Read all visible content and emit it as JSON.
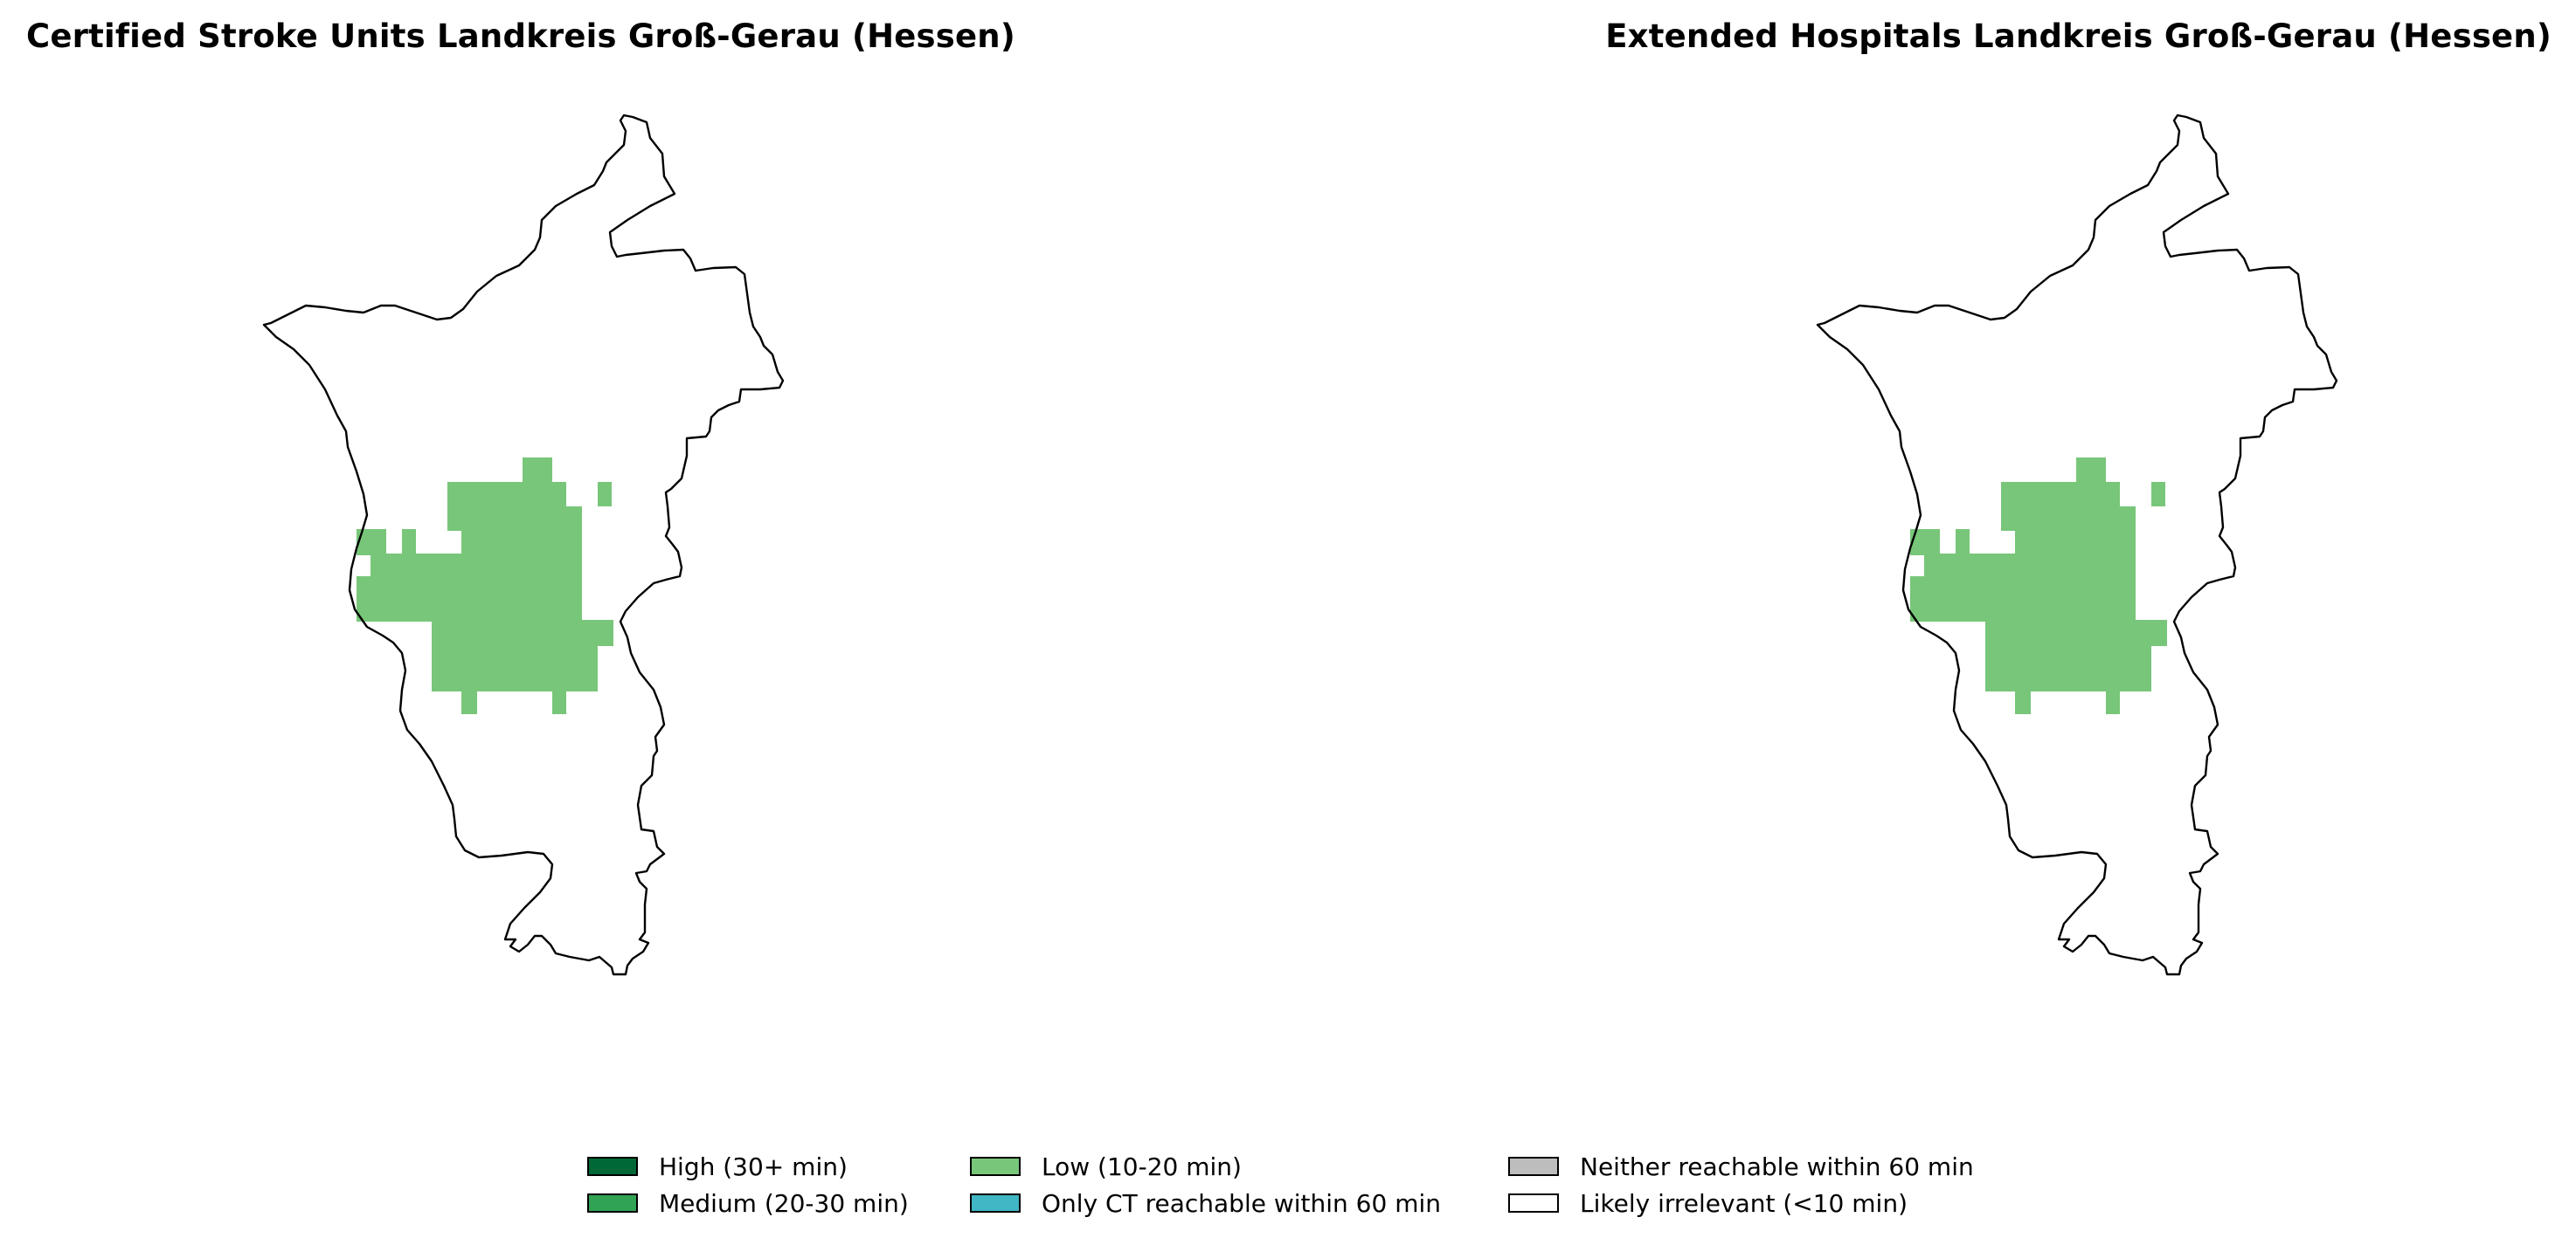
{
  "maps": [
    {
      "title": "Certified Stroke Units Landkreis Groß-Gerau (Hessen)"
    },
    {
      "title": "Extended Hospitals Landkreis Groß-Gerau (Hessen)"
    }
  ],
  "cell_color": "#78c679",
  "legend": [
    {
      "label": "High (30+ min)",
      "color": "#006837"
    },
    {
      "label": "Medium (20-30 min)",
      "color": "#31a354"
    },
    {
      "label": "Low (10-20 min)",
      "color": "#78c679"
    },
    {
      "label": "Only CT reachable within 60 min",
      "color": "#41b6c4"
    },
    {
      "label": "Neither reachable within 60 min",
      "color": "#bdbdbd"
    },
    {
      "label": "Likely irrelevant (<10 min)",
      "color": "#ffffff"
    }
  ]
}
